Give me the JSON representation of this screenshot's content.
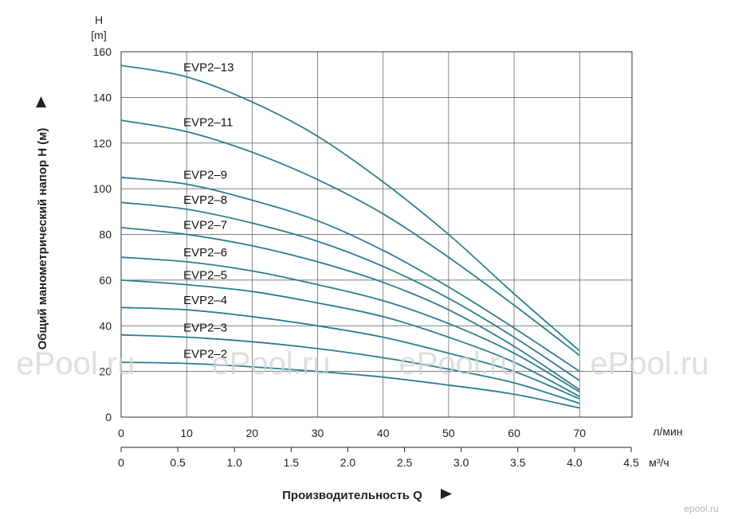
{
  "chart_data": {
    "type": "line",
    "y_axis": {
      "unit_symbol": "H",
      "unit": "[m]",
      "label": "Общий манометрический напор H (м)",
      "ticks": [
        0,
        20,
        40,
        60,
        80,
        100,
        120,
        140,
        160
      ],
      "ylim": [
        0,
        160
      ]
    },
    "x_axis_lmin": {
      "unit": "л/мин",
      "ticks": [
        0,
        10,
        20,
        30,
        40,
        50,
        60,
        70
      ],
      "xlim": [
        0,
        78
      ]
    },
    "x_axis_m3h": {
      "unit": "м³/ч",
      "ticks": [
        "0",
        "0.5",
        "1.0",
        "1.5",
        "2.0",
        "2.5",
        "3.0",
        "3.5",
        "4.0",
        "4.5"
      ]
    },
    "xlabel": "Производительность Q",
    "grid": true,
    "line_color": "#2a7f8c",
    "series": [
      {
        "name": "EVP2–13",
        "x": [
          0,
          10,
          20,
          30,
          40,
          50,
          60,
          70
        ],
        "y": [
          154,
          149,
          138,
          123,
          103,
          80,
          54,
          29
        ]
      },
      {
        "name": "EVP2–11",
        "x": [
          0,
          10,
          20,
          30,
          40,
          50,
          60,
          70
        ],
        "y": [
          130,
          125,
          116,
          104,
          89,
          70,
          49,
          27
        ]
      },
      {
        "name": "EVP2–9",
        "x": [
          0,
          10,
          20,
          30,
          40,
          50,
          60,
          70
        ],
        "y": [
          105,
          102,
          95,
          86,
          73,
          57,
          39,
          20
        ]
      },
      {
        "name": "EVP2–8",
        "x": [
          0,
          10,
          20,
          30,
          40,
          50,
          60,
          70
        ],
        "y": [
          94,
          91,
          85,
          77,
          66,
          52,
          35,
          16
        ]
      },
      {
        "name": "EVP2–7",
        "x": [
          0,
          10,
          20,
          30,
          40,
          50,
          60,
          70
        ],
        "y": [
          83,
          80,
          75,
          68,
          59,
          47,
          31,
          12
        ]
      },
      {
        "name": "EVP2–6",
        "x": [
          0,
          10,
          20,
          30,
          40,
          50,
          60,
          70
        ],
        "y": [
          70,
          68,
          64,
          58,
          51,
          41,
          28,
          11
        ]
      },
      {
        "name": "EVP2–5",
        "x": [
          0,
          10,
          20,
          30,
          40,
          50,
          60,
          70
        ],
        "y": [
          60,
          58,
          55,
          50,
          44,
          35,
          24,
          9
        ]
      },
      {
        "name": "EVP2–4",
        "x": [
          0,
          10,
          20,
          30,
          40,
          50,
          60,
          70
        ],
        "y": [
          48,
          47,
          44,
          40,
          35,
          28,
          20,
          8
        ]
      },
      {
        "name": "EVP2–3",
        "x": [
          0,
          10,
          20,
          30,
          40,
          50,
          60,
          70
        ],
        "y": [
          36,
          35,
          33,
          30,
          26,
          21,
          15,
          6
        ]
      },
      {
        "name": "EVP2–2",
        "x": [
          0,
          10,
          20,
          30,
          40,
          50,
          60,
          70
        ],
        "y": [
          24,
          23.5,
          22,
          20,
          17.5,
          14,
          10,
          4
        ]
      }
    ]
  },
  "watermarks": [
    "ePool.ru",
    "ePool.ru",
    "ePool.ru",
    "ePool.ru"
  ],
  "footer_logo": "epool.ru"
}
